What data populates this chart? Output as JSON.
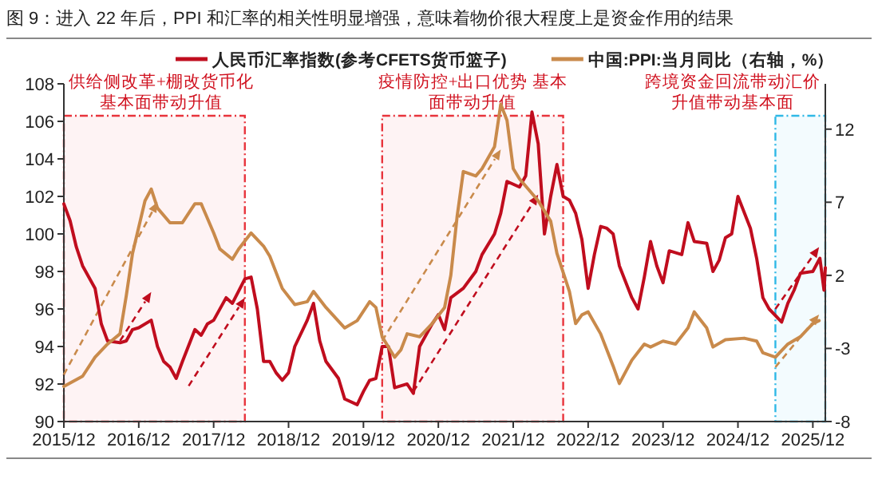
{
  "chart_data": {
    "type": "line",
    "title": "图 9：进入 22 年后，PPI 和汇率的相关性明显增强，意味着物价很大程度上是资金作用的结果",
    "xlim": [
      "2015-12",
      "2026-02"
    ],
    "xticks": [
      {
        "value": "2015-12",
        "label": "2015/12"
      },
      {
        "value": "2016-12",
        "label": "2016/12"
      },
      {
        "value": "2017-12",
        "label": "2017/12"
      },
      {
        "value": "2018-12",
        "label": "2018/12"
      },
      {
        "value": "2019-12",
        "label": "2019/12"
      },
      {
        "value": "2020-12",
        "label": "2020/12"
      },
      {
        "value": "2021-12",
        "label": "2021/12"
      },
      {
        "value": "2022-12",
        "label": "2022/12"
      },
      {
        "value": "2023-12",
        "label": "2023/12"
      },
      {
        "value": "2024-12",
        "label": "2024/12"
      },
      {
        "value": "2025-12",
        "label": "2025/12"
      }
    ],
    "ylim": [
      90,
      108
    ],
    "yticks": [
      90,
      92,
      94,
      96,
      98,
      100,
      102,
      104,
      106,
      108
    ],
    "y2lim": [
      -8,
      15.1
    ],
    "y2ticks": [
      -8,
      -3,
      2,
      7,
      12
    ],
    "legend": "top",
    "grid": false,
    "marker": "none",
    "line_style": "solid",
    "bands": [
      {
        "axis": "x",
        "from": "2015-12",
        "to": "2018-05",
        "label": "供给侧改革+棚改货币化基本面带动升值",
        "color": "#e8343c"
      },
      {
        "axis": "x",
        "from": "2020-03",
        "to": "2022-08",
        "label": "疫情防控+出口优势 基本面带动升值",
        "color": "#e8343c"
      },
      {
        "axis": "x",
        "from": "2025-06",
        "to": "2026-02",
        "label": "跨境资金回流带动汇价升值带动基本面",
        "color": "#2fb8e6"
      }
    ],
    "series": [
      {
        "name": "人民币汇率指数(参考CFETS货币篮子)",
        "color": "#c00d1e",
        "axis": "y",
        "x": [
          "2015-12",
          "2016-01",
          "2016-02",
          "2016-03",
          "2016-05",
          "2016-06",
          "2016-07",
          "2016-09",
          "2016-10",
          "2016-11",
          "2016-12",
          "2017-02",
          "2017-03",
          "2017-04",
          "2017-05",
          "2017-06",
          "2017-07",
          "2017-09",
          "2017-10",
          "2017-11",
          "2017-12",
          "2018-02",
          "2018-03",
          "2018-05",
          "2018-06",
          "2018-07",
          "2018-08",
          "2018-09",
          "2018-10",
          "2018-11",
          "2018-12",
          "2019-01",
          "2019-03",
          "2019-04",
          "2019-05",
          "2019-06",
          "2019-08",
          "2019-09",
          "2019-11",
          "2019-12",
          "2020-01",
          "2020-02",
          "2020-03",
          "2020-04",
          "2020-05",
          "2020-07",
          "2020-08",
          "2020-09",
          "2020-11",
          "2020-12",
          "2021-01",
          "2021-02",
          "2021-04",
          "2021-06",
          "2021-07",
          "2021-09",
          "2021-10",
          "2021-11",
          "2022-01",
          "2022-02",
          "2022-03",
          "2022-04",
          "2022-05",
          "2022-06",
          "2022-07",
          "2022-08",
          "2022-09",
          "2022-10",
          "2022-11",
          "2022-12",
          "2023-01",
          "2023-02",
          "2023-03",
          "2023-04",
          "2023-05",
          "2023-07",
          "2023-08",
          "2023-09",
          "2023-10",
          "2023-11",
          "2023-12",
          "2024-01",
          "2024-03",
          "2024-04",
          "2024-05",
          "2024-07",
          "2024-08",
          "2024-09",
          "2024-10",
          "2024-11",
          "2024-12",
          "2025-02",
          "2025-03",
          "2025-04",
          "2025-05",
          "2025-07",
          "2025-08",
          "2025-09",
          "2025-10",
          "2025-12",
          "2026-01-05",
          "2026-01-25",
          "2026-02"
        ],
        "values": [
          101.6,
          100.7,
          99.3,
          98.3,
          97.1,
          95.2,
          94.3,
          94.2,
          94.3,
          94.9,
          95.0,
          95.4,
          94.0,
          93.2,
          92.9,
          92.3,
          93.2,
          94.9,
          94.6,
          95.2,
          95.4,
          96.6,
          96.3,
          97.6,
          97.7,
          96.0,
          93.2,
          93.2,
          92.6,
          92.2,
          92.6,
          94.0,
          95.4,
          96.3,
          94.3,
          93.2,
          92.3,
          91.2,
          90.9,
          91.6,
          92.2,
          92.3,
          94.0,
          94.0,
          91.8,
          92.0,
          91.5,
          94.0,
          95.2,
          95.7,
          94.9,
          96.6,
          97.1,
          98.0,
          98.9,
          100.0,
          101.1,
          102.8,
          102.5,
          103.1,
          106.5,
          104.8,
          100.0,
          102.0,
          103.7,
          102.0,
          101.8,
          101.1,
          99.7,
          97.1,
          98.9,
          100.4,
          100.3,
          100.0,
          98.3,
          96.6,
          96.0,
          97.7,
          99.6,
          98.3,
          97.4,
          99.1,
          98.9,
          100.6,
          99.6,
          99.5,
          98.0,
          98.6,
          99.8,
          100.0,
          102.0,
          100.3,
          98.7,
          96.6,
          96.0,
          95.3,
          96.3,
          97.0,
          97.9,
          98.0,
          98.7,
          97.0,
          98.2
        ]
      },
      {
        "name": "中国:PPI:当月同比（右轴，%）",
        "color": "#c98a4b",
        "axis": "y2",
        "x": [
          "2015-12",
          "2016-03",
          "2016-05",
          "2016-07",
          "2016-09",
          "2016-10",
          "2016-11",
          "2017-01",
          "2017-02",
          "2017-03",
          "2017-05",
          "2017-07",
          "2017-09",
          "2017-10",
          "2017-12",
          "2018-01",
          "2018-03",
          "2018-04",
          "2018-06",
          "2018-08",
          "2018-09",
          "2018-11",
          "2019-01",
          "2019-03",
          "2019-04",
          "2019-06",
          "2019-09",
          "2019-11",
          "2020-01",
          "2020-02",
          "2020-03",
          "2020-05",
          "2020-06",
          "2020-07",
          "2020-09",
          "2020-11",
          "2021-01",
          "2021-02",
          "2021-03",
          "2021-04",
          "2021-06",
          "2021-07",
          "2021-09",
          "2021-10",
          "2021-11",
          "2021-12",
          "2022-01",
          "2022-04",
          "2022-06",
          "2022-07",
          "2022-09",
          "2022-10",
          "2022-11",
          "2022-12",
          "2023-02",
          "2023-04",
          "2023-05",
          "2023-07",
          "2023-09",
          "2023-10",
          "2023-12",
          "2024-02",
          "2024-04",
          "2024-05",
          "2024-07",
          "2024-08",
          "2024-10",
          "2025-01",
          "2025-03",
          "2025-04",
          "2025-06",
          "2025-08",
          "2025-10",
          "2025-12",
          "2026-01"
        ],
        "values": [
          -5.6,
          -4.9,
          -3.6,
          -2.7,
          -2.0,
          0.6,
          3.5,
          7.1,
          7.9,
          6.6,
          5.6,
          5.6,
          6.9,
          6.9,
          4.9,
          3.8,
          3.1,
          3.8,
          4.9,
          4.0,
          3.3,
          1.1,
          0.0,
          0.2,
          0.9,
          -0.2,
          -1.6,
          -1.1,
          0.2,
          -0.2,
          -2.2,
          -3.6,
          -3.1,
          -2.0,
          -2.2,
          -1.3,
          -0.2,
          2.0,
          6.0,
          9.1,
          8.8,
          9.3,
          10.8,
          13.7,
          12.6,
          9.3,
          8.6,
          7.1,
          5.7,
          3.5,
          0.9,
          -1.3,
          -0.7,
          -0.5,
          -2.0,
          -4.2,
          -5.4,
          -3.8,
          -2.7,
          -2.9,
          -2.5,
          -2.7,
          -1.6,
          -0.5,
          -1.6,
          -2.9,
          -2.4,
          -2.3,
          -2.5,
          -3.3,
          -3.6,
          -2.7,
          -2.2,
          -1.3,
          -1.1
        ]
      }
    ]
  }
}
